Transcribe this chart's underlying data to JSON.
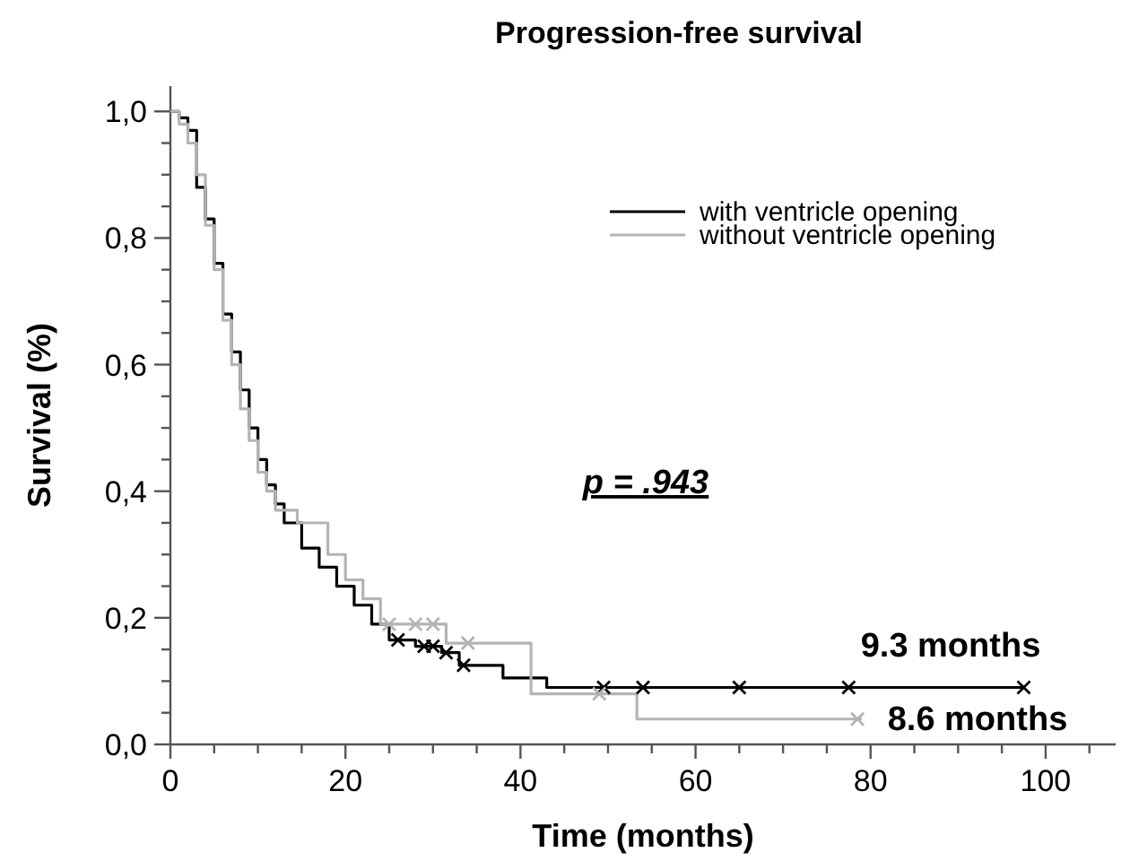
{
  "chart_data": {
    "type": "step",
    "title": "Progression-free survival",
    "xlabel": "Time (months)",
    "ylabel": "Survival (%)",
    "xlim": [
      0,
      108
    ],
    "ylim": [
      0,
      1.04
    ],
    "xticks": [
      0,
      {
        "value": 5,
        "label": null
      },
      {
        "value": 10,
        "label": null
      },
      {
        "value": 15,
        "label": null
      },
      20,
      {
        "value": 25,
        "label": null
      },
      {
        "value": 30,
        "label": null
      },
      {
        "value": 35,
        "label": null
      },
      40,
      {
        "value": 45,
        "label": null
      },
      {
        "value": 50,
        "label": null
      },
      {
        "value": 55,
        "label": null
      },
      60,
      {
        "value": 65,
        "label": null
      },
      {
        "value": 70,
        "label": null
      },
      {
        "value": 75,
        "label": null
      },
      80,
      {
        "value": 85,
        "label": null
      },
      {
        "value": 90,
        "label": null
      },
      {
        "value": 95,
        "label": null
      },
      100,
      {
        "value": 105,
        "label": null
      }
    ],
    "yticks": [
      {
        "value": 0,
        "label": "0,0"
      },
      {
        "value": 0.05,
        "label": null
      },
      {
        "value": 0.1,
        "label": null
      },
      {
        "value": 0.15,
        "label": null
      },
      {
        "value": 0.2,
        "label": "0,2"
      },
      {
        "value": 0.25,
        "label": null
      },
      {
        "value": 0.3,
        "label": null
      },
      {
        "value": 0.35,
        "label": null
      },
      {
        "value": 0.4,
        "label": "0,4"
      },
      {
        "value": 0.45,
        "label": null
      },
      {
        "value": 0.5,
        "label": null
      },
      {
        "value": 0.55,
        "label": null
      },
      {
        "value": 0.6,
        "label": "0,6"
      },
      {
        "value": 0.65,
        "label": null
      },
      {
        "value": 0.7,
        "label": null
      },
      {
        "value": 0.75,
        "label": null
      },
      {
        "value": 0.8,
        "label": "0,8"
      },
      {
        "value": 0.85,
        "label": null
      },
      {
        "value": 0.9,
        "label": null
      },
      {
        "value": 0.95,
        "label": null
      },
      {
        "value": 1,
        "label": "1,0"
      }
    ],
    "grid": false,
    "legend": "top right",
    "line_style": "solid",
    "marker": "none",
    "series": [
      {
        "name": "with ventricle opening",
        "color": "#000000",
        "x": [
          0,
          1,
          2,
          3,
          4,
          5,
          6,
          7,
          8,
          9,
          10,
          11,
          12,
          13,
          15,
          17,
          19,
          21,
          23,
          25,
          28,
          31,
          33,
          38,
          43,
          97.5
        ],
        "values": [
          1,
          0.99,
          0.97,
          0.88,
          0.83,
          0.76,
          0.68,
          0.62,
          0.56,
          0.5,
          0.45,
          0.41,
          0.38,
          0.35,
          0.31,
          0.28,
          0.25,
          0.22,
          0.19,
          0.165,
          0.155,
          0.145,
          0.125,
          0.105,
          0.09,
          0.09
        ]
      },
      {
        "name": "without ventricle opening",
        "color": "#b4b4b4",
        "x": [
          0,
          1,
          2,
          3,
          4,
          5,
          6,
          7,
          8,
          9,
          10,
          11,
          12,
          14.5,
          18,
          20,
          22,
          24,
          31.5,
          41.2,
          53.3,
          79
        ],
        "values": [
          1,
          0.98,
          0.95,
          0.9,
          0.82,
          0.75,
          0.67,
          0.6,
          0.53,
          0.48,
          0.43,
          0.4,
          0.37,
          0.35,
          0.3,
          0.26,
          0.23,
          0.19,
          0.16,
          0.08,
          0.04,
          0.04
        ]
      },
      {
        "type": "scatter",
        "marker": "cross",
        "color": "#000000",
        "x": [
          26,
          29,
          30,
          31.5,
          33.5,
          49.5,
          54,
          65,
          77.5,
          97.5
        ],
        "values": [
          0.165,
          0.155,
          0.155,
          0.145,
          0.125,
          0.09,
          0.09,
          0.09,
          0.09,
          0.09
        ]
      },
      {
        "type": "scatter",
        "marker": "cross",
        "color": "#b4b4b4",
        "x": [
          25,
          28,
          30,
          34,
          49,
          78.5
        ],
        "values": [
          0.19,
          0.19,
          0.19,
          0.16,
          0.08,
          0.04
        ]
      }
    ],
    "annotations": [
      "p = .943",
      "9.3 months",
      "8.6 months"
    ]
  }
}
